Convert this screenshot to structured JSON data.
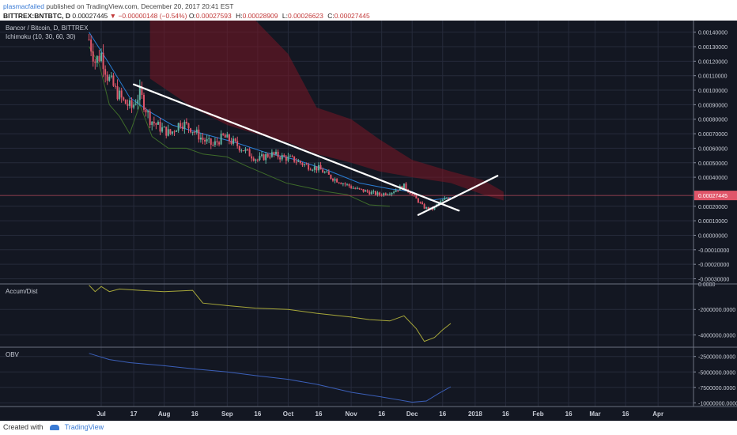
{
  "header": {
    "author": "plasmacfailed",
    "published": "published on TradingView.com, December 20, 2017 20:41 EST",
    "symbol": "BITTREX:BNTBTC, D",
    "last": "0.00027445",
    "change_arrow": "▼",
    "change": "−0.00000148 (−0.54%)",
    "o_label": "O:",
    "o_value": "0.00027593",
    "h_label": "H:",
    "h_value": "0.00028909",
    "l_label": "L:",
    "l_value": "0.00026623",
    "c_label": "C:",
    "c_value": "0.00027445"
  },
  "footer": {
    "created_with": "Created with",
    "brand": "TradingView"
  },
  "colors": {
    "background": "#131722",
    "grid": "#262b3b",
    "up": "#5fb3a0",
    "down": "#e0566a",
    "trendline": "#ffffff",
    "tenkan": "#2a7fd6",
    "chikou": "#3e6b2a",
    "cloud": "#7a1525",
    "accum": "#a8a83a",
    "obv": "#3b5fb8",
    "price_line": "#e0566a"
  },
  "chart_data": [
    {
      "type": "candlestick",
      "panel": "price",
      "title": "Bancor / Bitcoin, D, BITTREX",
      "indicator": "Ichimoku (10, 30, 60, 30)",
      "last_price_label": "0.00027445",
      "last_price": 0.00027445,
      "ylim": [
        -0.00033,
        0.00148
      ],
      "yticks": [
        0.0014,
        0.0013,
        0.0012,
        0.0011,
        0.001,
        0.0009,
        0.0008,
        0.0007,
        0.0006,
        0.0005,
        0.0004,
        0.0002,
        0.0001,
        0,
        -0.0001,
        -0.0002,
        -0.0003
      ],
      "ytick_labels": [
        "0.00140000",
        "0.00130000",
        "0.00120000",
        "0.00110000",
        "0.00100000",
        "0.00090000",
        "0.00080000",
        "0.00070000",
        "0.00060000",
        "0.00050000",
        "0.00040000",
        "0.00020000",
        "0.00010000",
        "0.00000000",
        "-0.00010000",
        "-0.00020000",
        "-0.00030000"
      ],
      "close_path": [
        [
          "2017-06-25",
          0.00135
        ],
        [
          "2017-06-28",
          0.0012
        ],
        [
          "2017-07-01",
          0.00125
        ],
        [
          "2017-07-04",
          0.0011
        ],
        [
          "2017-07-08",
          0.001
        ],
        [
          "2017-07-12",
          0.00092
        ],
        [
          "2017-07-16",
          0.00088
        ],
        [
          "2017-07-20",
          0.00098
        ],
        [
          "2017-07-25",
          0.0008
        ],
        [
          "2017-07-30",
          0.00074
        ],
        [
          "2017-08-04",
          0.0007
        ],
        [
          "2017-08-09",
          0.00078
        ],
        [
          "2017-08-14",
          0.00074
        ],
        [
          "2017-08-20",
          0.00066
        ],
        [
          "2017-08-25",
          0.00062
        ],
        [
          "2017-08-30",
          0.00068
        ],
        [
          "2017-09-04",
          0.00064
        ],
        [
          "2017-09-10",
          0.00058
        ],
        [
          "2017-09-16",
          0.00052
        ],
        [
          "2017-09-22",
          0.00056
        ],
        [
          "2017-09-28",
          0.00054
        ],
        [
          "2017-10-04",
          0.00052
        ],
        [
          "2017-10-10",
          0.00048
        ],
        [
          "2017-10-16",
          0.00046
        ],
        [
          "2017-10-22",
          0.0004
        ],
        [
          "2017-10-28",
          0.00036
        ],
        [
          "2017-11-03",
          0.00032
        ],
        [
          "2017-11-09",
          0.0003
        ],
        [
          "2017-11-15",
          0.00028
        ],
        [
          "2017-11-21",
          0.0003
        ],
        [
          "2017-11-27",
          0.00034
        ],
        [
          "2017-12-03",
          0.00025
        ],
        [
          "2017-12-07",
          0.00019
        ],
        [
          "2017-12-11",
          0.00018
        ],
        [
          "2017-12-14",
          0.00022
        ],
        [
          "2017-12-17",
          0.00025
        ],
        [
          "2017-12-20",
          0.00027445
        ]
      ],
      "trendline_down": [
        [
          "2017-07-17",
          0.00104
        ],
        [
          "2017-12-24",
          0.00017
        ]
      ],
      "trendline_up": [
        [
          "2017-12-04",
          0.00014
        ],
        [
          "2018-01-12",
          0.00041
        ]
      ],
      "tenkan_path": [
        [
          "2017-06-25",
          0.0014
        ],
        [
          "2017-07-05",
          0.00118
        ],
        [
          "2017-07-15",
          0.00095
        ],
        [
          "2017-07-25",
          0.00085
        ],
        [
          "2017-08-05",
          0.00076
        ],
        [
          "2017-08-20",
          0.0007
        ],
        [
          "2017-09-05",
          0.00064
        ],
        [
          "2017-09-20",
          0.00057
        ],
        [
          "2017-10-05",
          0.00052
        ],
        [
          "2017-10-20",
          0.00045
        ],
        [
          "2017-11-05",
          0.00036
        ],
        [
          "2017-11-20",
          0.00032
        ],
        [
          "2017-12-01",
          0.0003
        ],
        [
          "2017-12-10",
          0.00024
        ],
        [
          "2017-12-20",
          0.00026
        ]
      ],
      "chikou_path": [
        [
          "2017-06-25",
          0.0013
        ],
        [
          "2017-06-30",
          0.00118
        ],
        [
          "2017-07-05",
          0.0009
        ],
        [
          "2017-07-10",
          0.00082
        ],
        [
          "2017-07-15",
          0.0007
        ],
        [
          "2017-07-20",
          0.0009
        ],
        [
          "2017-07-26",
          0.00068
        ],
        [
          "2017-08-03",
          0.0006
        ],
        [
          "2017-08-12",
          0.0006
        ],
        [
          "2017-08-20",
          0.00056
        ],
        [
          "2017-09-01",
          0.00054
        ],
        [
          "2017-09-10",
          0.00048
        ],
        [
          "2017-09-20",
          0.00042
        ],
        [
          "2017-09-30",
          0.00036
        ],
        [
          "2017-10-10",
          0.00033
        ],
        [
          "2017-10-20",
          0.0003
        ],
        [
          "2017-10-30",
          0.00028
        ],
        [
          "2017-11-10",
          0.00021
        ],
        [
          "2017-11-20",
          0.0002
        ]
      ],
      "cloud_upper": [
        [
          "2017-07-25",
          0.00148
        ],
        [
          "2017-08-15",
          0.00148
        ],
        [
          "2017-09-01",
          0.00148
        ],
        [
          "2017-09-15",
          0.00148
        ],
        [
          "2017-10-01",
          0.00125
        ],
        [
          "2017-10-15",
          0.00088
        ],
        [
          "2017-11-01",
          0.0008
        ],
        [
          "2017-11-15",
          0.00066
        ],
        [
          "2017-12-01",
          0.00052
        ],
        [
          "2017-12-20",
          0.00044
        ],
        [
          "2018-01-05",
          0.00038
        ],
        [
          "2018-01-15",
          0.0003
        ]
      ],
      "cloud_lower": [
        [
          "2017-07-25",
          0.00108
        ],
        [
          "2017-08-15",
          0.00088
        ],
        [
          "2017-09-01",
          0.00076
        ],
        [
          "2017-09-15",
          0.0007
        ],
        [
          "2017-10-01",
          0.00064
        ],
        [
          "2017-10-15",
          0.00056
        ],
        [
          "2017-11-01",
          0.0005
        ],
        [
          "2017-11-15",
          0.00044
        ],
        [
          "2017-12-01",
          0.0004
        ],
        [
          "2017-12-20",
          0.00036
        ],
        [
          "2018-01-05",
          0.00028
        ],
        [
          "2018-01-15",
          0.00024
        ]
      ]
    },
    {
      "type": "line",
      "panel": "indicator",
      "title": "Accum/Dist",
      "ylim": [
        -4900000,
        0
      ],
      "yticks": [
        0,
        -2000000,
        -4000000
      ],
      "ytick_labels": [
        "0.0000",
        "-2000000.0000",
        "-4000000.0000"
      ],
      "path": [
        [
          "2017-06-25",
          -100000
        ],
        [
          "2017-06-28",
          -600000
        ],
        [
          "2017-07-01",
          -200000
        ],
        [
          "2017-07-05",
          -600000
        ],
        [
          "2017-07-10",
          -400000
        ],
        [
          "2017-07-20",
          -500000
        ],
        [
          "2017-08-01",
          -600000
        ],
        [
          "2017-08-15",
          -500000
        ],
        [
          "2017-08-20",
          -1500000
        ],
        [
          "2017-09-01",
          -1700000
        ],
        [
          "2017-09-15",
          -1900000
        ],
        [
          "2017-10-01",
          -2000000
        ],
        [
          "2017-10-15",
          -2300000
        ],
        [
          "2017-11-01",
          -2600000
        ],
        [
          "2017-11-10",
          -2800000
        ],
        [
          "2017-11-20",
          -2900000
        ],
        [
          "2017-11-27",
          -2500000
        ],
        [
          "2017-12-03",
          -3500000
        ],
        [
          "2017-12-07",
          -4500000
        ],
        [
          "2017-12-12",
          -4200000
        ],
        [
          "2017-12-16",
          -3600000
        ],
        [
          "2017-12-20",
          -3100000
        ]
      ]
    },
    {
      "type": "line",
      "panel": "indicator",
      "title": "OBV",
      "ylim": [
        -10600000,
        -1000000
      ],
      "yticks": [
        -2500000,
        -5000000,
        -7500000,
        -10000000
      ],
      "ytick_labels": [
        "-2500000.0000",
        "-5000000.0000",
        "-7500000.0000",
        "-10000000.0000"
      ],
      "path": [
        [
          "2017-06-25",
          -2000000
        ],
        [
          "2017-07-05",
          -3000000
        ],
        [
          "2017-07-15",
          -3500000
        ],
        [
          "2017-08-01",
          -4000000
        ],
        [
          "2017-08-15",
          -4500000
        ],
        [
          "2017-09-01",
          -5000000
        ],
        [
          "2017-09-15",
          -5600000
        ],
        [
          "2017-10-01",
          -6200000
        ],
        [
          "2017-10-15",
          -7000000
        ],
        [
          "2017-11-01",
          -8300000
        ],
        [
          "2017-11-15",
          -9000000
        ],
        [
          "2017-12-01",
          -9900000
        ],
        [
          "2017-12-08",
          -9700000
        ],
        [
          "2017-12-14",
          -8500000
        ],
        [
          "2017-12-20",
          -7400000
        ]
      ]
    }
  ],
  "x_axis": {
    "ticks": [
      [
        "2017-07-01",
        "Jul"
      ],
      [
        "2017-07-17",
        "17"
      ],
      [
        "2017-08-01",
        "Aug"
      ],
      [
        "2017-08-16",
        "16"
      ],
      [
        "2017-09-01",
        "Sep"
      ],
      [
        "2017-09-16",
        "16"
      ],
      [
        "2017-10-01",
        "Oct"
      ],
      [
        "2017-10-16",
        "16"
      ],
      [
        "2017-11-01",
        "Nov"
      ],
      [
        "2017-11-16",
        "16"
      ],
      [
        "2017-12-01",
        "Dec"
      ],
      [
        "2017-12-16",
        "16"
      ],
      [
        "2018-01-01",
        "2018"
      ],
      [
        "2018-01-16",
        "16"
      ],
      [
        "2018-02-01",
        "Feb"
      ],
      [
        "2018-02-16",
        "16"
      ],
      [
        "2018-03-01",
        "Mar"
      ],
      [
        "2018-03-16",
        "16"
      ],
      [
        "2018-04-01",
        "Apr"
      ]
    ]
  }
}
